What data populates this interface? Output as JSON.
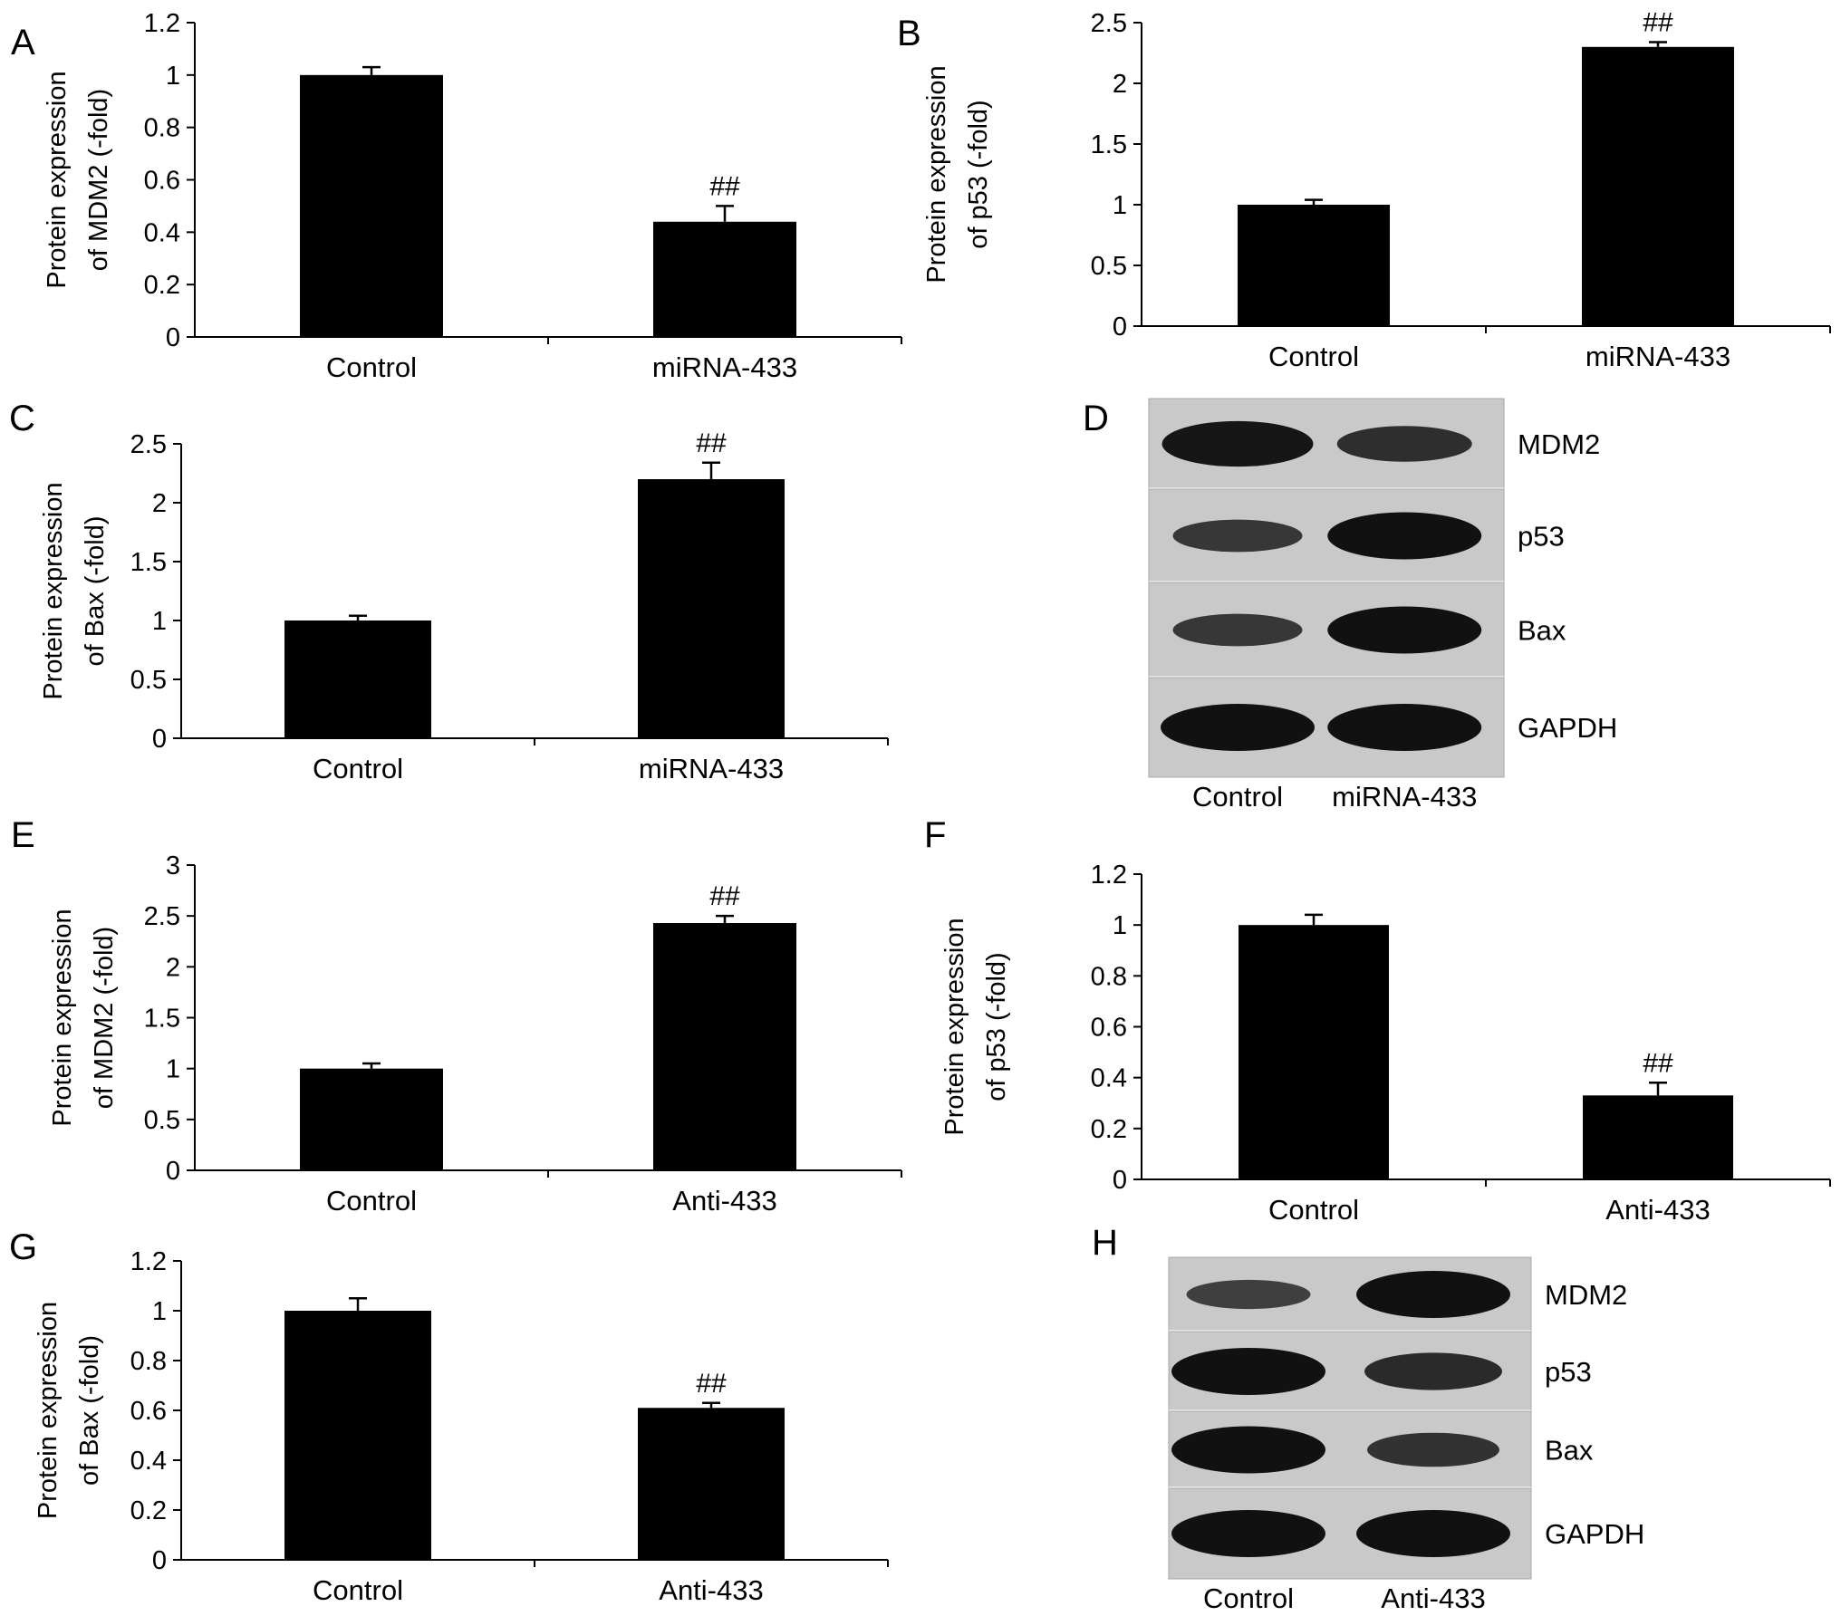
{
  "panels": [
    {
      "id": "A",
      "label": "A",
      "ylabel": [
        "Protein expression",
        "of MDM2 (-fold)"
      ],
      "chart_data": {
        "type": "bar",
        "categories": [
          "Control",
          "miRNA-433"
        ],
        "values": [
          1.0,
          0.44
        ],
        "errors": [
          0.03,
          0.06
        ],
        "annotations": [
          "",
          "##"
        ],
        "ylim": [
          0,
          1.2
        ],
        "yticks": [
          0,
          0.2,
          0.4,
          0.6,
          0.8,
          1,
          1.2
        ],
        "ytick_labels": [
          "0",
          "0.2",
          "0.4",
          "0.6",
          "0.8",
          "1",
          "1.2"
        ],
        "xlabel": "",
        "grid": false
      }
    },
    {
      "id": "B",
      "label": "B",
      "ylabel": [
        "Protein expression",
        "of p53 (-fold)"
      ],
      "chart_data": {
        "type": "bar",
        "categories": [
          "Control",
          "miRNA-433"
        ],
        "values": [
          1.0,
          2.3
        ],
        "errors": [
          0.04,
          0.04
        ],
        "annotations": [
          "",
          "##"
        ],
        "ylim": [
          0,
          2.5
        ],
        "yticks": [
          0,
          0.5,
          1,
          1.5,
          2,
          2.5
        ],
        "ytick_labels": [
          "0",
          "0.5",
          "1",
          "1.5",
          "2",
          "2.5"
        ],
        "xlabel": "",
        "grid": false
      }
    },
    {
      "id": "C",
      "label": "C",
      "ylabel": [
        "Protein expression",
        "of Bax (-fold)"
      ],
      "chart_data": {
        "type": "bar",
        "categories": [
          "Control",
          "miRNA-433"
        ],
        "values": [
          1.0,
          2.2
        ],
        "errors": [
          0.04,
          0.14
        ],
        "annotations": [
          "",
          "##"
        ],
        "ylim": [
          0,
          2.5
        ],
        "yticks": [
          0,
          0.5,
          1,
          1.5,
          2,
          2.5
        ],
        "ytick_labels": [
          "0",
          "0.5",
          "1",
          "1.5",
          "2",
          "2.5"
        ],
        "xlabel": "",
        "grid": false
      }
    },
    {
      "id": "E",
      "label": "E",
      "ylabel": [
        "Protein expression",
        "of MDM2 (-fold)"
      ],
      "chart_data": {
        "type": "bar",
        "categories": [
          "Control",
          "Anti-433"
        ],
        "values": [
          1.0,
          2.43
        ],
        "errors": [
          0.05,
          0.07
        ],
        "annotations": [
          "",
          "##"
        ],
        "ylim": [
          0,
          3
        ],
        "yticks": [
          0,
          0.5,
          1,
          1.5,
          2,
          2.5,
          3
        ],
        "ytick_labels": [
          "0",
          "0.5",
          "1",
          "1.5",
          "2",
          "2.5",
          "3"
        ],
        "xlabel": "",
        "grid": false
      }
    },
    {
      "id": "F",
      "label": "F",
      "ylabel": [
        "Protein expression",
        "of p53 (-fold)"
      ],
      "chart_data": {
        "type": "bar",
        "categories": [
          "Control",
          "Anti-433"
        ],
        "values": [
          1.0,
          0.33
        ],
        "errors": [
          0.04,
          0.05
        ],
        "annotations": [
          "",
          "##"
        ],
        "ylim": [
          0,
          1.2
        ],
        "yticks": [
          0,
          0.2,
          0.4,
          0.6,
          0.8,
          1,
          1.2
        ],
        "ytick_labels": [
          "0",
          "0.2",
          "0.4",
          "0.6",
          "0.8",
          "1",
          "1.2"
        ],
        "xlabel": "",
        "grid": false
      }
    },
    {
      "id": "G",
      "label": "G",
      "ylabel": [
        "Protein expression",
        "of Bax (-fold)"
      ],
      "chart_data": {
        "type": "bar",
        "categories": [
          "Control",
          "Anti-433"
        ],
        "values": [
          1.0,
          0.61
        ],
        "errors": [
          0.05,
          0.02
        ],
        "annotations": [
          "",
          "##"
        ],
        "ylim": [
          0,
          1.2
        ],
        "yticks": [
          0,
          0.2,
          0.4,
          0.6,
          0.8,
          1,
          1.2
        ],
        "ytick_labels": [
          "0",
          "0.2",
          "0.4",
          "0.6",
          "0.8",
          "1",
          "1.2"
        ],
        "xlabel": "",
        "grid": false
      }
    }
  ],
  "blots": [
    {
      "id": "D",
      "label": "D",
      "proteins": [
        "MDM2",
        "p53",
        "Bax",
        "GAPDH"
      ],
      "lanes": [
        "Control",
        "miRNA-433"
      ],
      "band_intensity": [
        [
          0.95,
          0.65
        ],
        [
          0.55,
          1.0
        ],
        [
          0.55,
          1.0
        ],
        [
          1.0,
          1.0
        ]
      ]
    },
    {
      "id": "H",
      "label": "H",
      "proteins": [
        "MDM2",
        "p53",
        "Bax",
        "GAPDH"
      ],
      "lanes": [
        "Control",
        "Anti-433"
      ],
      "band_intensity": [
        [
          0.45,
          1.0
        ],
        [
          1.0,
          0.7
        ],
        [
          1.0,
          0.6
        ],
        [
          1.0,
          1.0
        ]
      ]
    }
  ]
}
